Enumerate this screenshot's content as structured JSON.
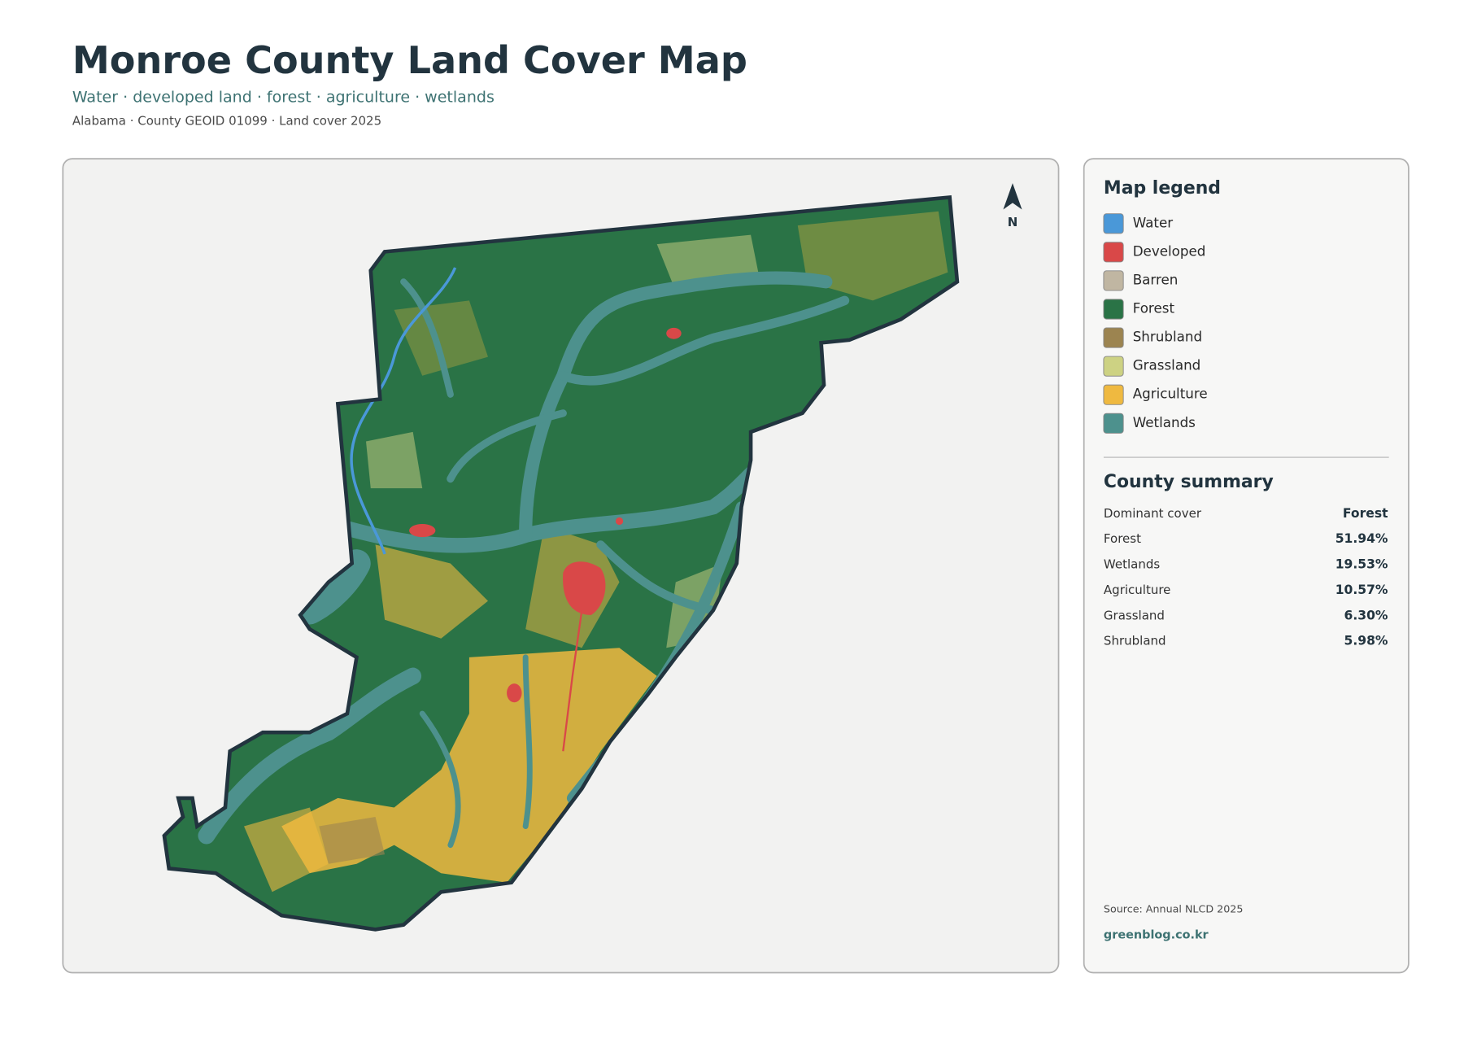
{
  "header": {
    "title": "Monroe County Land Cover Map",
    "subtitle": "Water · developed land · forest · agriculture · wetlands",
    "meta": "Alabama · County GEOID 01099 · Land cover 2025"
  },
  "map": {
    "north_label": "N"
  },
  "legend": {
    "title": "Map legend",
    "items": [
      {
        "label": "Water",
        "color": "#4a98d8"
      },
      {
        "label": "Developed",
        "color": "#d94848"
      },
      {
        "label": "Barren",
        "color": "#c0b6a2"
      },
      {
        "label": "Forest",
        "color": "#2a7346"
      },
      {
        "label": "Shrubland",
        "color": "#9c8450"
      },
      {
        "label": "Grassland",
        "color": "#cdd283"
      },
      {
        "label": "Agriculture",
        "color": "#efb940"
      },
      {
        "label": "Wetlands",
        "color": "#4d918d"
      }
    ]
  },
  "summary": {
    "title": "County summary",
    "rows": [
      {
        "label": "Dominant cover",
        "value": "Forest"
      },
      {
        "label": "Forest",
        "value": "51.94%"
      },
      {
        "label": "Wetlands",
        "value": "19.53%"
      },
      {
        "label": "Agriculture",
        "value": "10.57%"
      },
      {
        "label": "Grassland",
        "value": "6.30%"
      },
      {
        "label": "Shrubland",
        "value": "5.98%"
      }
    ]
  },
  "footer": {
    "source": "Source: Annual NLCD 2025",
    "site": "greenblog.co.kr"
  }
}
